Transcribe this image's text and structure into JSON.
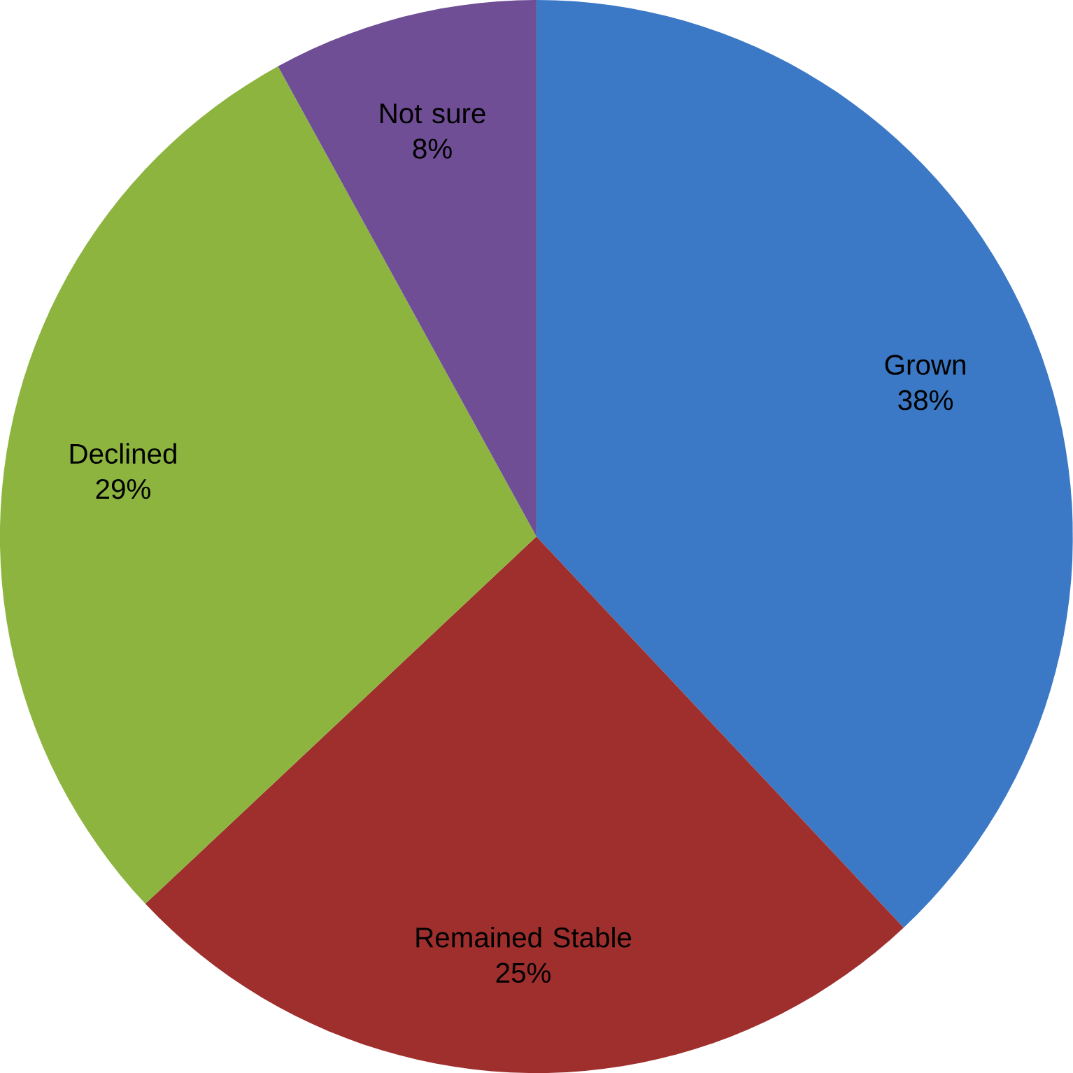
{
  "chart_data": {
    "type": "pie",
    "categories": [
      "Grown",
      "Remained Stable",
      "Declined",
      "Not sure"
    ],
    "values": [
      38,
      25,
      29,
      8
    ],
    "value_labels": [
      "38%",
      "25%",
      "29%",
      "8%"
    ],
    "colors": [
      "#3b78c5",
      "#9e2f2d",
      "#8cb43f",
      "#6f4e96"
    ]
  }
}
